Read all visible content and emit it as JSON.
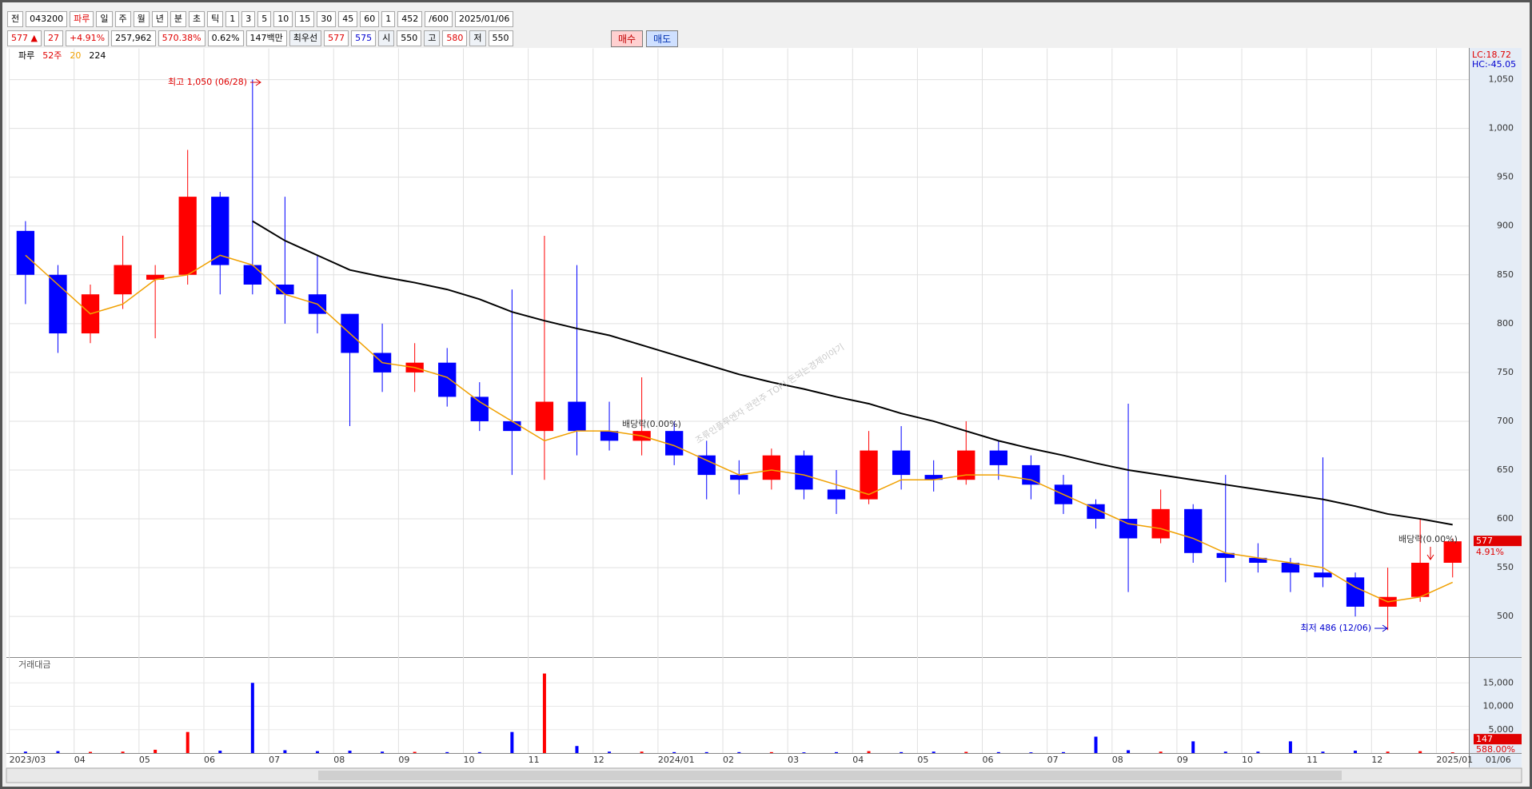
{
  "toolbar": {
    "row1": [
      "전",
      "043200",
      "파루",
      "일",
      "주",
      "월",
      "년",
      "분",
      "초",
      "틱",
      "1",
      "3",
      "5",
      "10",
      "15",
      "30",
      "45",
      "60",
      "1",
      "452",
      "/600",
      "2025/01/06"
    ],
    "row2": [
      "577 ▲",
      "27",
      "+4.91%",
      "257,962",
      "570.38%",
      "0.62%",
      "147백만",
      "최우선",
      "577",
      "575",
      "시",
      "550",
      "고",
      "580",
      "저",
      "550"
    ],
    "buy": "매수",
    "sell": "매도"
  },
  "chart_data": {
    "type": "candlestick",
    "legend": {
      "name": "파루",
      "period": "52주"
    },
    "corner": {
      "lc": "LC:18.72",
      "hc": "HC:-45.05"
    },
    "annotations": {
      "high": "최고 1,050 (06/28)",
      "low": "최저 486 (12/06)",
      "dividend1": "배당락(0.00%)",
      "dividend2": "배당락(0.00%)",
      "watermark": "조류인플루엔자 관련주 TOP! 돈되는경제이야기",
      "price_tag": "577",
      "change_tag": "4.91%",
      "last_date": "01/06"
    },
    "categories": [
      "2023/03",
      null,
      "04",
      null,
      "05",
      null,
      "06",
      null,
      "07",
      null,
      "08",
      null,
      "09",
      null,
      "10",
      null,
      "11",
      null,
      "12",
      null,
      "2024/01",
      null,
      "02",
      null,
      "03",
      null,
      "04",
      null,
      "05",
      null,
      "06",
      null,
      "07",
      null,
      "08",
      null,
      "09",
      null,
      "10",
      null,
      "11",
      null,
      "12",
      null,
      "2025/01"
    ],
    "open": [
      895,
      850,
      790,
      830,
      845,
      850,
      930,
      860,
      840,
      830,
      810,
      770,
      750,
      760,
      725,
      700,
      690,
      720,
      690,
      680,
      690,
      665,
      645,
      640,
      665,
      630,
      620,
      670,
      645,
      640,
      670,
      655,
      635,
      615,
      600,
      580,
      610,
      565,
      560,
      555,
      545,
      540,
      510,
      520,
      555
    ],
    "high": [
      905,
      860,
      840,
      890,
      860,
      978,
      935,
      1050,
      930,
      870,
      810,
      800,
      780,
      775,
      740,
      835,
      890,
      860,
      720,
      745,
      700,
      680,
      660,
      672,
      670,
      650,
      690,
      695,
      660,
      700,
      680,
      665,
      645,
      620,
      718,
      630,
      615,
      645,
      575,
      560,
      663,
      545,
      550,
      600,
      580
    ],
    "low": [
      820,
      770,
      780,
      815,
      785,
      840,
      830,
      830,
      800,
      790,
      695,
      730,
      730,
      715,
      690,
      645,
      640,
      665,
      670,
      665,
      655,
      620,
      625,
      630,
      620,
      605,
      615,
      630,
      628,
      635,
      640,
      620,
      605,
      590,
      525,
      575,
      555,
      535,
      545,
      525,
      530,
      500,
      486,
      515,
      540
    ],
    "close": [
      850,
      790,
      830,
      860,
      850,
      930,
      860,
      840,
      830,
      810,
      770,
      750,
      760,
      725,
      700,
      690,
      720,
      690,
      680,
      690,
      665,
      645,
      640,
      665,
      630,
      620,
      670,
      645,
      640,
      670,
      655,
      635,
      615,
      600,
      580,
      610,
      565,
      560,
      555,
      545,
      540,
      510,
      520,
      555,
      577
    ],
    "up_color": "#ff0000",
    "down_color": "#0000ff",
    "series": [
      {
        "name": "20",
        "color": "#f0a000",
        "values": [
          870,
          840,
          810,
          820,
          845,
          850,
          870,
          860,
          830,
          820,
          790,
          760,
          755,
          745,
          720,
          700,
          680,
          690,
          690,
          685,
          675,
          660,
          645,
          650,
          645,
          635,
          625,
          640,
          640,
          645,
          645,
          640,
          625,
          610,
          595,
          590,
          580,
          565,
          560,
          555,
          550,
          530,
          515,
          520,
          535
        ]
      },
      {
        "name": "224",
        "color": "#000000",
        "values": [
          null,
          null,
          null,
          null,
          null,
          null,
          null,
          905,
          885,
          870,
          855,
          848,
          842,
          835,
          825,
          812,
          803,
          795,
          788,
          778,
          768,
          758,
          748,
          740,
          733,
          725,
          718,
          708,
          700,
          690,
          680,
          672,
          665,
          657,
          650,
          645,
          640,
          635,
          630,
          625,
          620,
          613,
          605,
          600,
          594
        ]
      }
    ],
    "ylim": [
      460,
      1082
    ],
    "yticks": [
      500,
      550,
      600,
      650,
      700,
      750,
      800,
      850,
      900,
      950,
      {
        "value": 1000,
        "label": "1,000"
      },
      {
        "value": 1050,
        "label": "1,050"
      }
    ],
    "grid": true,
    "volume": {
      "title": "거래대금",
      "values": [
        300,
        400,
        250,
        300,
        700,
        4500,
        500,
        15000,
        600,
        400,
        500,
        300,
        250,
        200,
        200,
        4500,
        17000,
        1500,
        300,
        300,
        200,
        200,
        200,
        200,
        150,
        200,
        400,
        200,
        300,
        250,
        200,
        150,
        200,
        3500,
        600,
        300,
        2500,
        300,
        300,
        2500,
        300,
        500,
        300,
        400,
        147
      ],
      "ylim": [
        0,
        20000
      ],
      "yticks": [
        {
          "value": 5000,
          "label": "5,000"
        },
        {
          "value": 10000,
          "label": "10,000"
        },
        {
          "value": 15000,
          "label": "15,000"
        }
      ],
      "last_label": "147",
      "ratio_label": "588.00%"
    }
  }
}
